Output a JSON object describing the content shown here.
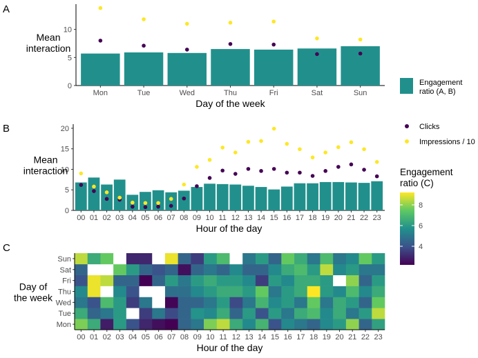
{
  "colors": {
    "bar": "#21908C",
    "dot_clicks": "#440154",
    "dot_impr": "#FDE725",
    "missing": "#FFFFFF"
  },
  "chart_data": [
    {
      "panel": "A",
      "type": "bar",
      "xlabel": "Day of the week",
      "ylabel": [
        "Mean",
        "interaction"
      ],
      "ylim": [
        0,
        14.5
      ],
      "yticks": [
        0,
        5,
        10
      ],
      "categories": [
        "Mon",
        "Tue",
        "Wed",
        "Thu",
        "Fri",
        "Sat",
        "Sun"
      ],
      "series": [
        {
          "name": "Engagement ratio (A, B)",
          "kind": "bar",
          "values": [
            5.7,
            5.9,
            5.8,
            6.5,
            6.4,
            6.6,
            7.0
          ]
        },
        {
          "name": "Clicks",
          "kind": "point",
          "values": [
            8.0,
            7.1,
            6.4,
            7.4,
            7.3,
            5.6,
            5.7
          ]
        },
        {
          "name": "Impressions / 10",
          "kind": "point",
          "values": [
            13.8,
            11.8,
            11.0,
            11.2,
            11.4,
            8.4,
            8.2
          ]
        }
      ]
    },
    {
      "panel": "B",
      "type": "bar",
      "xlabel": "Hour of the day",
      "ylabel": [
        "Mean",
        "interaction"
      ],
      "ylim": [
        0,
        21
      ],
      "yticks": [
        0,
        5,
        10,
        15,
        20
      ],
      "categories": [
        "00",
        "01",
        "02",
        "03",
        "04",
        "05",
        "06",
        "07",
        "08",
        "09",
        "10",
        "11",
        "12",
        "13",
        "14",
        "15",
        "16",
        "17",
        "18",
        "19",
        "20",
        "21",
        "22",
        "23"
      ],
      "series": [
        {
          "name": "Engagement ratio (A, B)",
          "kind": "bar",
          "values": [
            6.8,
            8.0,
            6.3,
            7.5,
            3.8,
            4.5,
            4.9,
            4.4,
            4.8,
            5.7,
            6.5,
            6.4,
            6.3,
            6.0,
            5.7,
            5.1,
            5.8,
            6.6,
            6.6,
            6.9,
            6.9,
            6.8,
            6.7,
            7.1
          ]
        },
        {
          "name": "Clicks",
          "kind": "point",
          "values": [
            6.2,
            4.7,
            2.8,
            2.6,
            0.9,
            0.8,
            0.9,
            1.1,
            2.9,
            5.9,
            7.9,
            9.7,
            8.9,
            10.1,
            9.6,
            10.1,
            9.2,
            9.2,
            8.4,
            9.6,
            10.6,
            11.2,
            9.9,
            8.3
          ]
        },
        {
          "name": "Impressions / 10",
          "kind": "point",
          "values": [
            9.0,
            5.8,
            4.4,
            3.1,
            1.9,
            1.8,
            1.8,
            2.8,
            6.3,
            10.6,
            12.3,
            15.3,
            14.1,
            16.7,
            16.9,
            19.9,
            16.2,
            14.9,
            12.9,
            14.1,
            15.4,
            16.6,
            14.9,
            11.8
          ]
        }
      ]
    },
    {
      "panel": "C",
      "type": "heatmap",
      "xlabel": "Hour of the day",
      "ylabel": [
        "Day of",
        "the week"
      ],
      "x": [
        "00",
        "01",
        "02",
        "03",
        "04",
        "05",
        "06",
        "07",
        "08",
        "09",
        "10",
        "11",
        "12",
        "13",
        "14",
        "15",
        "16",
        "17",
        "18",
        "19",
        "20",
        "21",
        "22",
        "23"
      ],
      "y": [
        "Mon",
        "Tue",
        "Wed",
        "Thu",
        "Fri",
        "Sat",
        "Sun"
      ],
      "color_scale": "viridis",
      "clim": [
        2.2,
        9.2
      ],
      "values": [
        [
          7.8,
          6.5,
          2.8,
          6.0,
          4.0,
          3.0,
          2.5,
          2.2,
          4.5,
          5.0,
          7.8,
          8.5,
          6.5,
          5.5,
          6.8,
          4.0,
          5.5,
          5.0,
          4.5,
          5.5,
          6.0,
          8.0,
          4.5,
          6.2
        ],
        [
          6.5,
          4.5,
          5.0,
          6.0,
          null,
          3.5,
          5.0,
          3.8,
          4.5,
          5.8,
          5.5,
          6.5,
          4.5,
          6.0,
          4.0,
          6.0,
          5.0,
          6.5,
          7.0,
          5.5,
          6.5,
          5.0,
          6.0,
          8.5
        ],
        [
          5.0,
          4.0,
          7.0,
          6.0,
          3.5,
          5.0,
          null,
          2.3,
          4.5,
          4.5,
          5.0,
          6.0,
          3.8,
          5.0,
          6.8,
          5.5,
          6.0,
          5.0,
          7.5,
          5.0,
          6.5,
          6.0,
          4.5,
          7.5
        ],
        [
          5.5,
          9.0,
          null,
          5.5,
          4.0,
          null,
          null,
          4.8,
          4.8,
          5.5,
          6.0,
          6.5,
          6.5,
          6.0,
          7.5,
          5.0,
          6.0,
          6.5,
          9.2,
          6.0,
          5.5,
          7.0,
          5.5,
          6.5
        ],
        [
          4.0,
          9.0,
          8.5,
          4.5,
          4.5,
          2.2,
          4.5,
          6.0,
          5.0,
          6.0,
          6.5,
          6.0,
          6.0,
          5.5,
          3.5,
          6.0,
          5.5,
          6.5,
          6.5,
          6.0,
          null,
          8.0,
          4.5,
          6.0
        ],
        [
          4.5,
          null,
          null,
          7.5,
          6.0,
          4.5,
          4.0,
          4.5,
          2.5,
          4.5,
          5.0,
          4.5,
          5.5,
          4.5,
          4.5,
          5.5,
          6.5,
          7.0,
          6.0,
          8.5,
          5.5,
          6.0,
          5.0,
          5.0
        ],
        [
          8.5,
          6.5,
          7.5,
          null,
          3.0,
          3.0,
          null,
          9.0,
          4.5,
          3.5,
          6.0,
          7.0,
          null,
          5.0,
          6.0,
          4.5,
          7.5,
          6.5,
          5.0,
          7.0,
          5.0,
          5.5,
          7.5,
          6.0
        ]
      ]
    }
  ],
  "panels": {
    "a": "A",
    "b": "B",
    "c": "C"
  },
  "legend": {
    "bar_label_lines": [
      "Engagement",
      "ratio (A, B)"
    ],
    "clicks": "Clicks",
    "impressions": "Impressions / 10",
    "colorbar_title_lines": [
      "Engagement",
      "ratio (C)"
    ],
    "colorbar_ticks": [
      4,
      6,
      8
    ]
  }
}
